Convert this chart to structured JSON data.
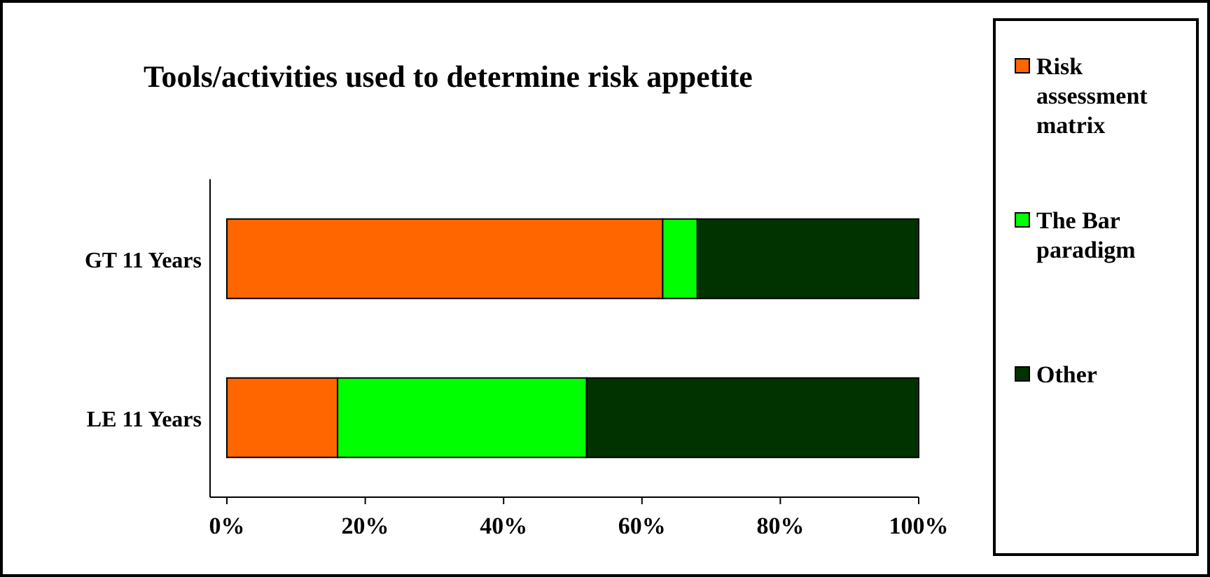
{
  "chart_data": {
    "type": "bar",
    "title": "Tools/activities used to determine risk appetite",
    "orientation": "horizontal",
    "stacked": true,
    "categories": [
      "GT 11 Years",
      "LE 11 Years"
    ],
    "series": [
      {
        "name": "Risk assessment matrix",
        "color": "#ff6600",
        "values": [
          63,
          16
        ]
      },
      {
        "name": "The Bar paradigm",
        "color": "#00ff00",
        "values": [
          5,
          36
        ]
      },
      {
        "name": "Other",
        "color": "#003300",
        "values": [
          32,
          48
        ]
      }
    ],
    "xlim": [
      0,
      100
    ],
    "xticks": [
      {
        "value": 0,
        "label": "0%"
      },
      {
        "value": 20,
        "label": "20%"
      },
      {
        "value": 40,
        "label": "40%"
      },
      {
        "value": 60,
        "label": "60%"
      },
      {
        "value": 80,
        "label": "80%"
      },
      {
        "value": 100,
        "label": "100%"
      }
    ],
    "grid": false,
    "legend": "right"
  }
}
